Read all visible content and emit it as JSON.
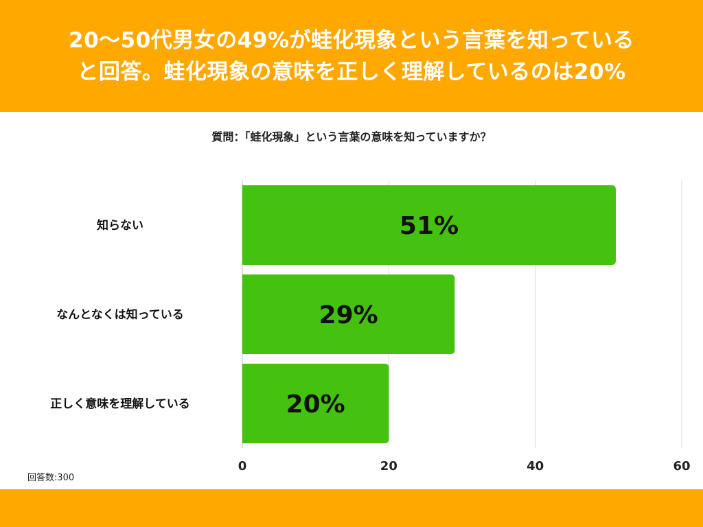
{
  "header": {
    "line1": "20〜50代男女の49%が蛙化現象という言葉を知っている",
    "line2": "と回答。蛙化現象の意味を正しく理解しているのは20%"
  },
  "question": "質問：「蛙化現象」という言葉の意味を知っていますか？",
  "respondents": "回答数:300",
  "colors": {
    "header": "#FFA800",
    "bar": "#45C10F",
    "grid": "#D9D9D9"
  },
  "chart_data": {
    "type": "bar",
    "orientation": "horizontal",
    "categories": [
      "知らない",
      "なんとなくは知っている",
      "正しく意味を理解している"
    ],
    "values": [
      51,
      29,
      20
    ],
    "data_labels": [
      "51%",
      "29%",
      "20%"
    ],
    "xlim": [
      0,
      60
    ],
    "xticks": [
      "0",
      "20",
      "40",
      "60"
    ],
    "grid": true
  }
}
